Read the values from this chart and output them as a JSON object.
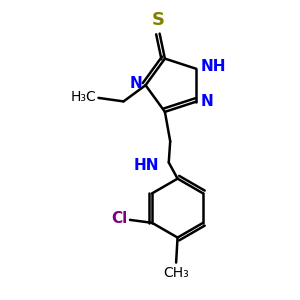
{
  "bg_color": "#ffffff",
  "atom_color_N": "#0000ff",
  "atom_color_S": "#808000",
  "atom_color_Cl": "#800080",
  "atom_color_C": "#000000",
  "figsize": [
    3.0,
    3.0
  ],
  "dpi": 100,
  "xlim": [
    0,
    10
  ],
  "ylim": [
    0,
    10
  ],
  "lw": 1.8,
  "fs_large": 11,
  "fs_medium": 10,
  "fs_small": 9
}
